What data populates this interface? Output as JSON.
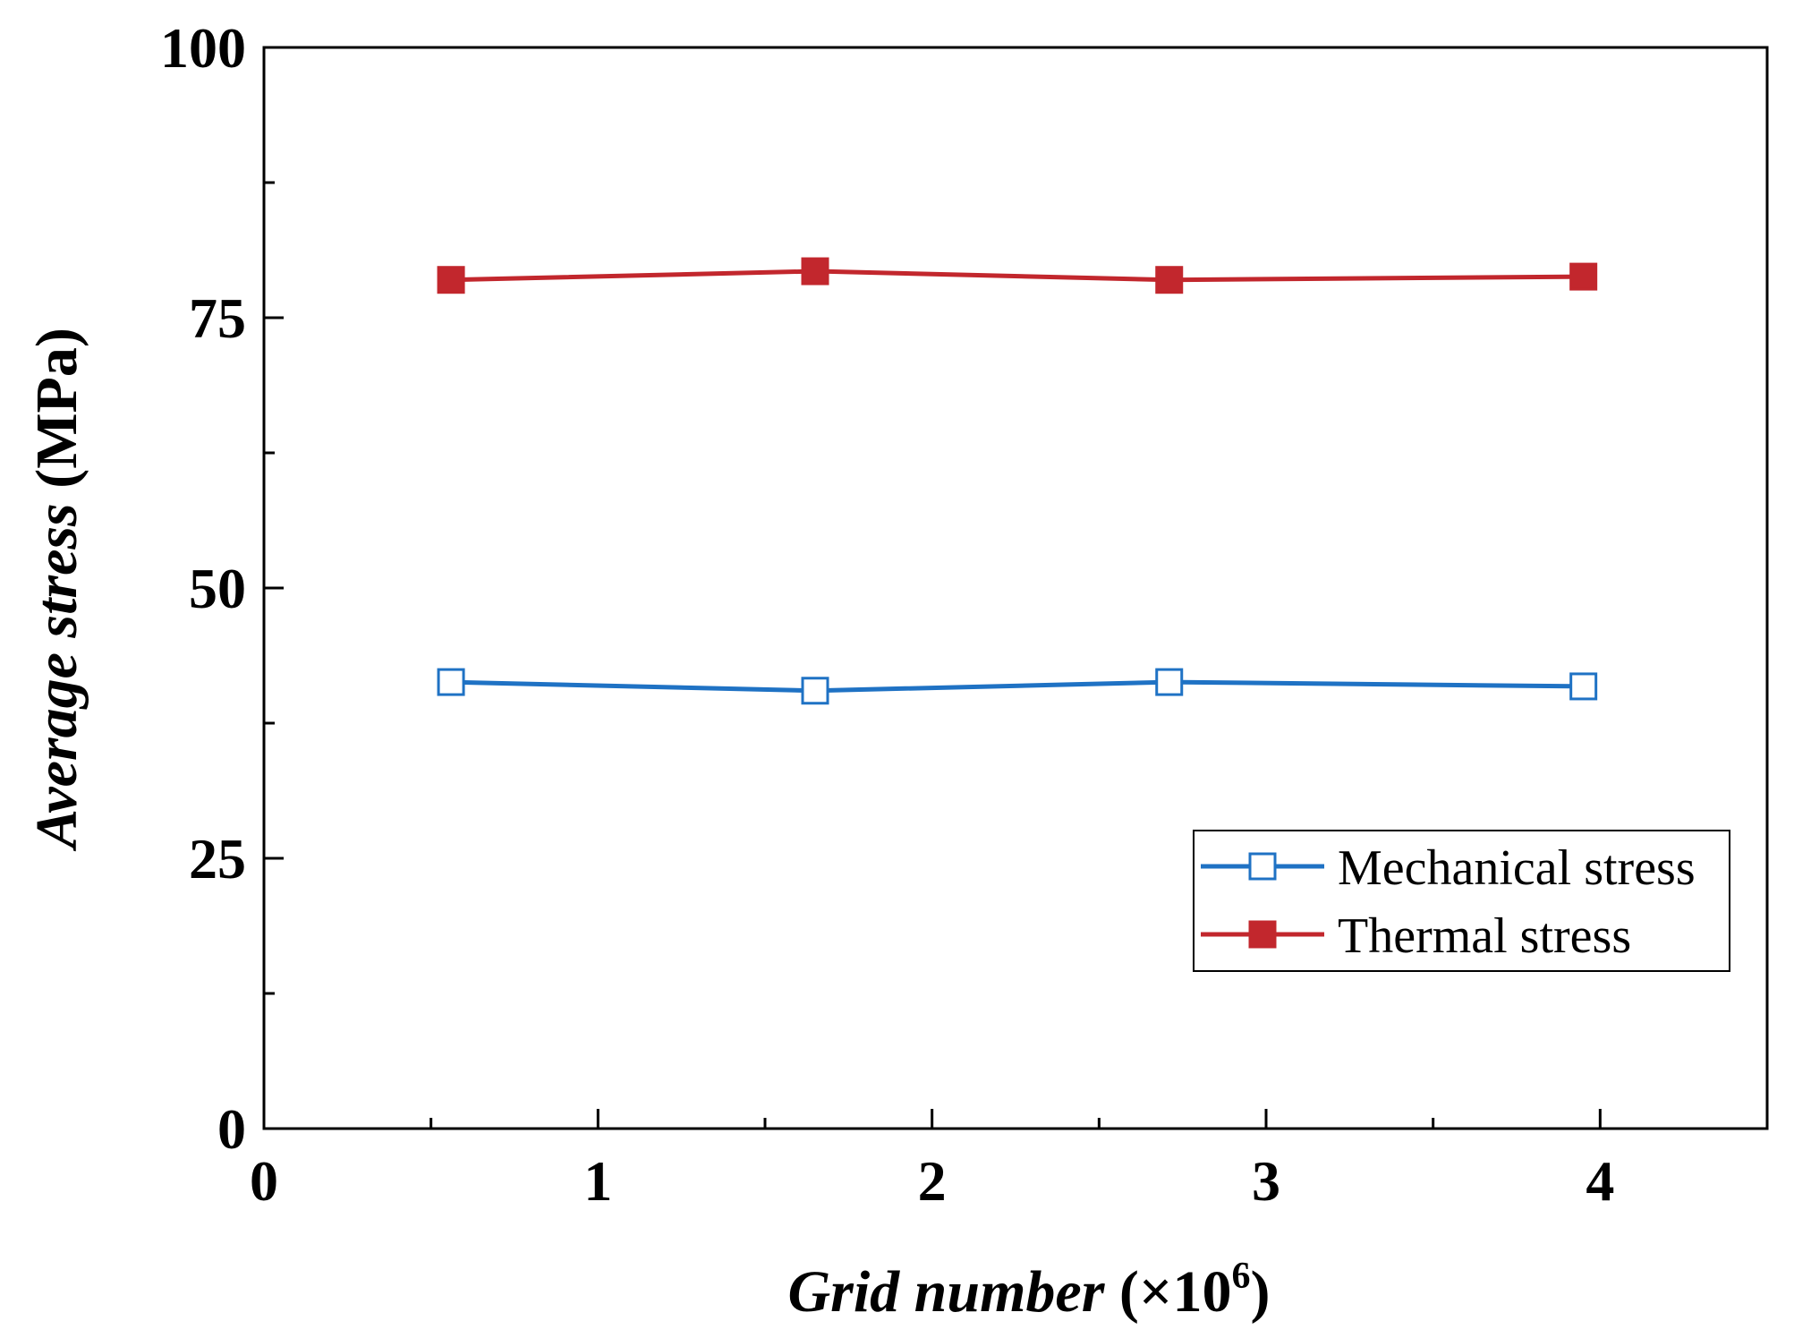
{
  "chart_data": {
    "type": "line",
    "title": "",
    "xlabel_italic": "Grid number",
    "xlabel_suffix_pre": "(×10",
    "xlabel_superscript": "6",
    "xlabel_suffix_post": ")",
    "ylabel_italic": "Average stress",
    "ylabel_suffix": "(MPa)",
    "xlim": [
      0,
      4.5
    ],
    "ylim": [
      0,
      100
    ],
    "x_major_ticks": [
      0,
      1,
      2,
      3,
      4
    ],
    "x_tick_labels": [
      "0",
      "1",
      "2",
      "3",
      "4"
    ],
    "x_minor_ticks": [
      0.5,
      1.5,
      2.5,
      3.5
    ],
    "y_major_ticks": [
      0,
      25,
      50,
      75,
      100
    ],
    "y_tick_labels": [
      "0",
      "25",
      "50",
      "75",
      "100"
    ],
    "y_minor_ticks": [
      12.5,
      37.5,
      62.5,
      87.5
    ],
    "grid": false,
    "legend_position": "lower-right",
    "series": [
      {
        "name": "Mechanical stress",
        "color": "#1f72c4",
        "marker": "open-square",
        "x": [
          0.56,
          1.65,
          2.71,
          3.95
        ],
        "y": [
          41.3,
          40.5,
          41.3,
          40.9
        ]
      },
      {
        "name": "Thermal stress",
        "color": "#c2272d",
        "marker": "filled-square",
        "x": [
          0.56,
          1.65,
          2.71,
          3.95
        ],
        "y": [
          78.5,
          79.3,
          78.5,
          78.8
        ]
      }
    ]
  }
}
